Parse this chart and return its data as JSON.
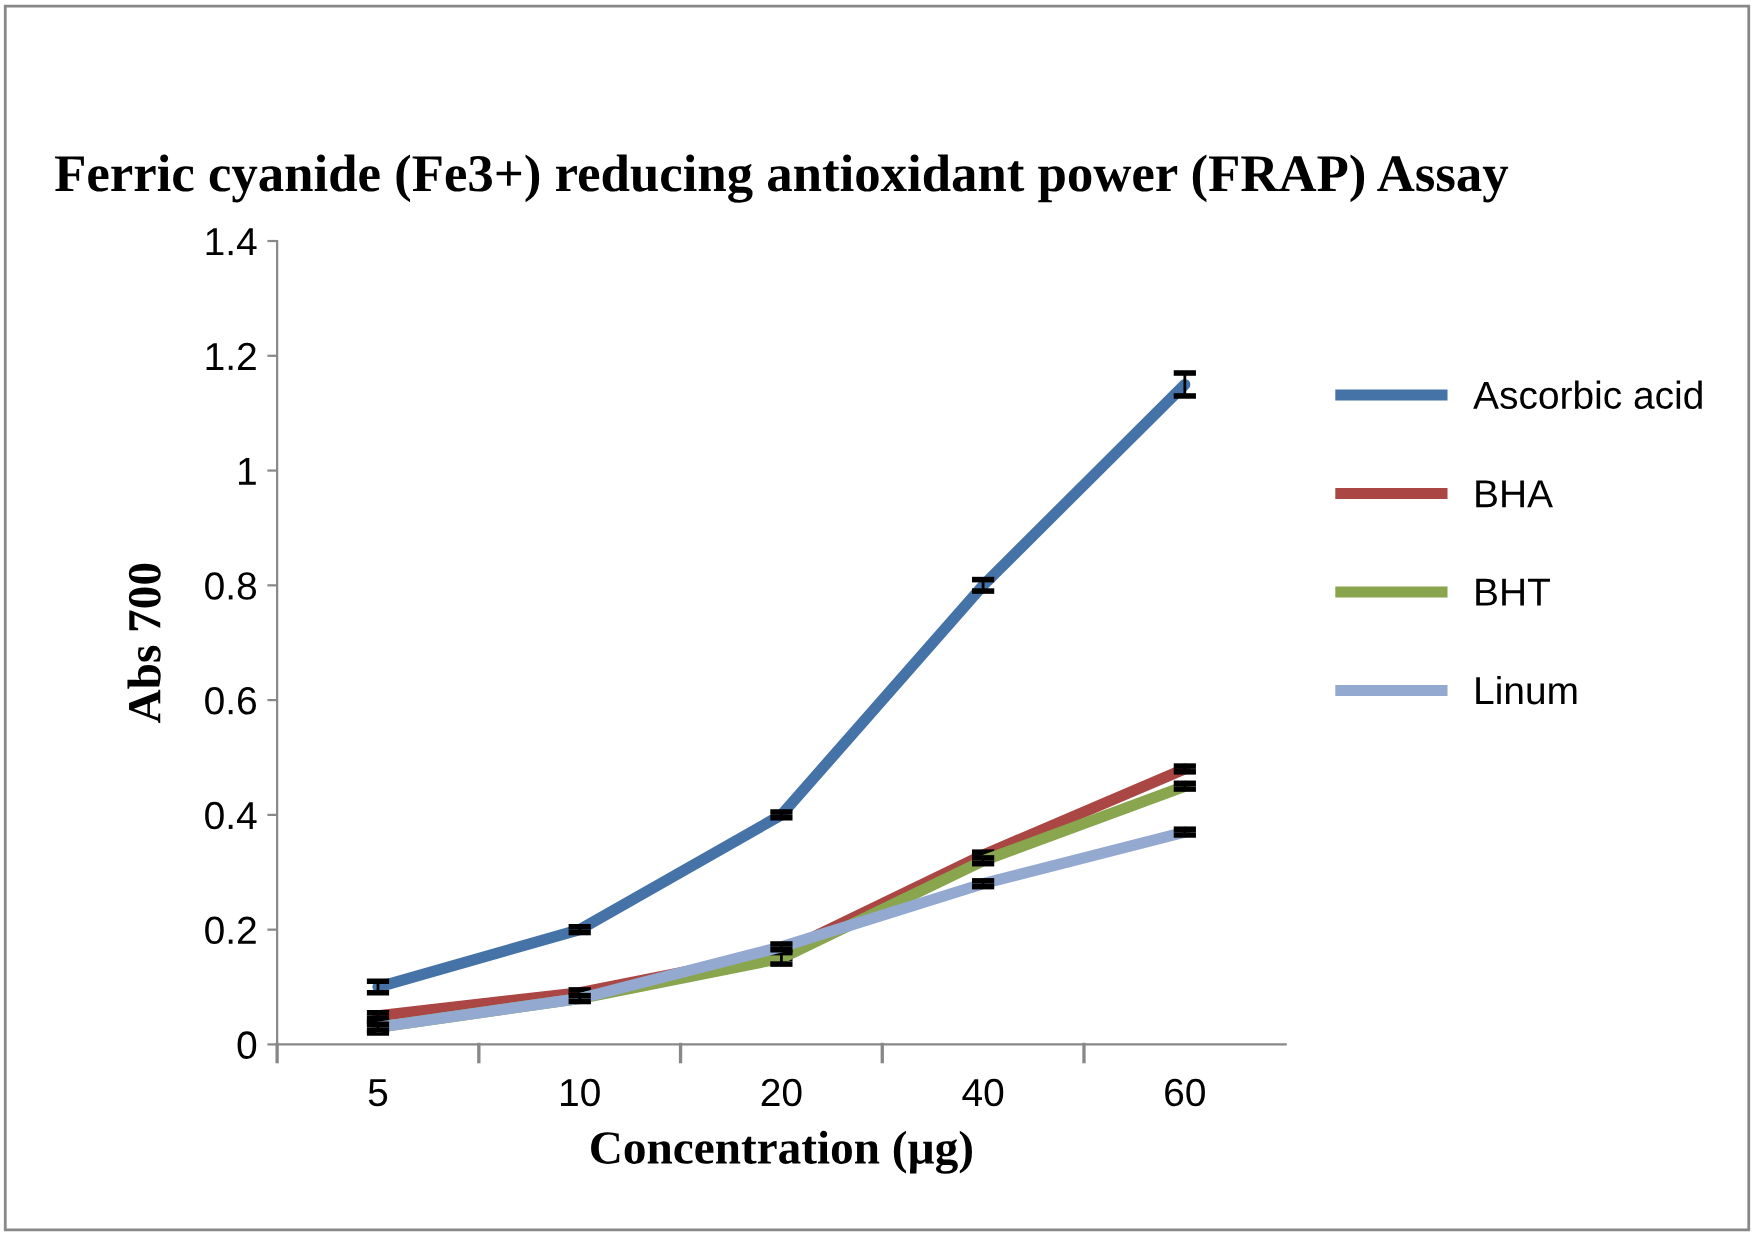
{
  "chart_data": {
    "type": "line",
    "title": "Ferric cyanide (Fe3+) reducing antioxidant power (FRAP) Assay",
    "xlabel": "Concentration (µg)",
    "ylabel": "Abs 700",
    "categories": [
      "5",
      "10",
      "20",
      "40",
      "60"
    ],
    "series": [
      {
        "name": "Ascorbic acid",
        "color": "#4573a7",
        "values": [
          0.1,
          0.2,
          0.4,
          0.8,
          1.15
        ],
        "errors": [
          0.01,
          0.005,
          0.005,
          0.01,
          0.02
        ]
      },
      {
        "name": "BHA",
        "color": "#aa4643",
        "values": [
          0.05,
          0.09,
          0.16,
          0.33,
          0.48
        ],
        "errors": [
          0.005,
          0.005,
          0.01,
          0.005,
          0.005
        ]
      },
      {
        "name": "BHT",
        "color": "#89a54e",
        "values": [
          0.03,
          0.08,
          0.15,
          0.32,
          0.45
        ],
        "errors": [
          0.01,
          0.005,
          0.01,
          0.005,
          0.005
        ]
      },
      {
        "name": "Linum",
        "color": "#93a9cf",
        "values": [
          0.03,
          0.08,
          0.17,
          0.28,
          0.37
        ],
        "errors": [
          0.005,
          0.005,
          0.005,
          0.005,
          0.005
        ]
      }
    ],
    "ylim": [
      0,
      1.4
    ],
    "yticks": [
      0,
      0.2,
      0.4,
      0.6,
      0.8,
      1,
      1.2,
      1.4
    ],
    "grid": false,
    "legend": "right",
    "marker": "none",
    "line_style": "solid"
  }
}
